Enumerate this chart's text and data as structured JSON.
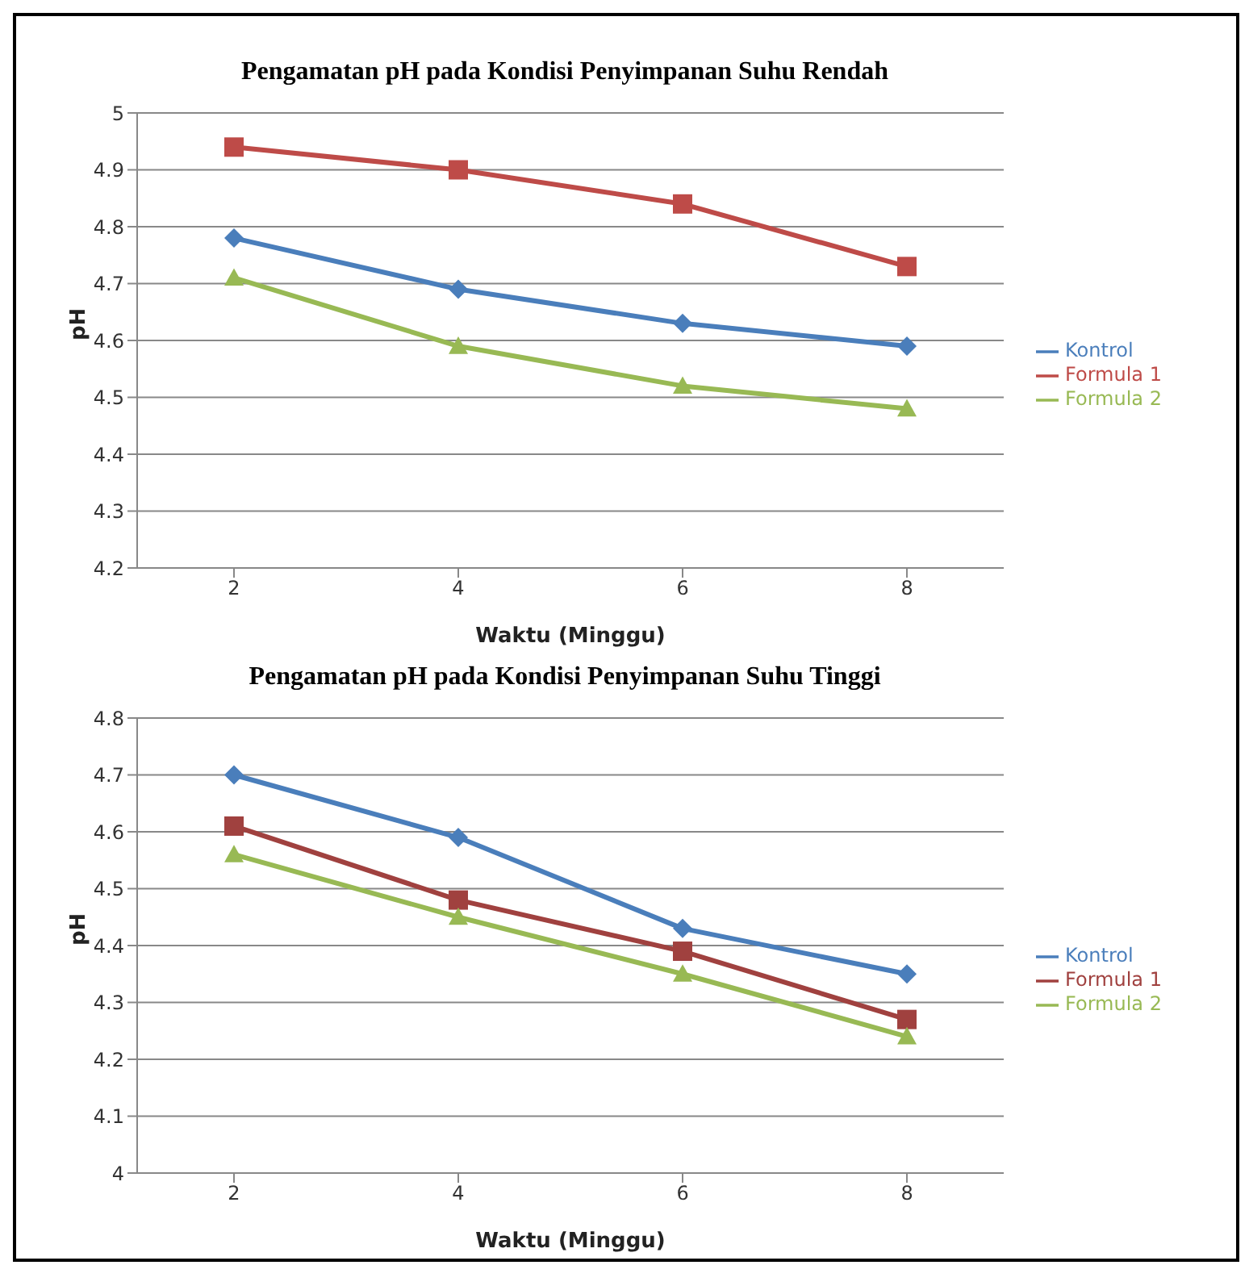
{
  "chart_data": [
    {
      "type": "line",
      "title": "Pengamatan pH pada Kondisi Penyimpanan  Suhu Rendah",
      "xlabel": "Waktu (Minggu)",
      "ylabel": "pH",
      "categories": [
        "2",
        "4",
        "6",
        "8"
      ],
      "series": [
        {
          "name": "Kontrol",
          "color": "#4a7ebb",
          "marker": "diamond",
          "values": [
            4.78,
            4.69,
            4.63,
            4.59
          ]
        },
        {
          "name": "Formula 1",
          "color": "#be4b48",
          "marker": "square",
          "values": [
            4.94,
            4.9,
            4.84,
            4.73
          ]
        },
        {
          "name": "Formula 2",
          "color": "#98b954",
          "marker": "triangle",
          "values": [
            4.71,
            4.59,
            4.52,
            4.48
          ]
        }
      ],
      "ylim": [
        4.2,
        5
      ],
      "yticks": [
        4.2,
        4.3,
        4.4,
        4.5,
        4.6,
        4.7,
        4.8,
        4.9,
        5
      ],
      "grid": "y",
      "legend": "right"
    },
    {
      "type": "line",
      "title": "Pengamatan pH pada Kondisi Penyimpanan  Suhu Tinggi",
      "xlabel": "Waktu (Minggu)",
      "ylabel": "pH",
      "categories": [
        "2",
        "4",
        "6",
        "8"
      ],
      "series": [
        {
          "name": "Kontrol",
          "color": "#4a7ebb",
          "marker": "diamond",
          "values": [
            4.7,
            4.59,
            4.43,
            4.35
          ]
        },
        {
          "name": "Formula 1",
          "color": "#a0413f",
          "marker": "square",
          "values": [
            4.61,
            4.48,
            4.39,
            4.27
          ]
        },
        {
          "name": "Formula 2",
          "color": "#98b954",
          "marker": "triangle",
          "values": [
            4.56,
            4.45,
            4.35,
            4.24
          ]
        }
      ],
      "ylim": [
        4,
        4.8
      ],
      "yticks": [
        4,
        4.1,
        4.2,
        4.3,
        4.4,
        4.5,
        4.6,
        4.7,
        4.8
      ],
      "grid": "y",
      "legend": "right"
    }
  ]
}
